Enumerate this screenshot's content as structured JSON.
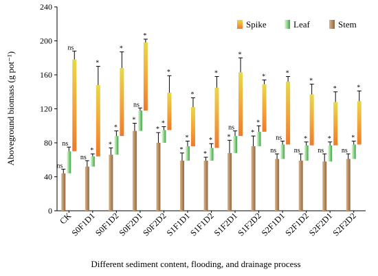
{
  "chart_data": {
    "type": "bar",
    "subtype": "stacked",
    "categories": [
      "CK",
      "S0F1D1",
      "S0F1D2",
      "S0F2D1",
      "S0F2D2",
      "S1F1D1",
      "S1F1D2",
      "S1F2D1",
      "S1F2D2",
      "S2F1D1",
      "S2F1D2",
      "S2F2D1",
      "S2F2D2"
    ],
    "ylabel": "Aboveground biomass (g pot⁻¹)",
    "xlabel": "Different sediment content, flooding, and drainage process",
    "ylim": [
      0,
      240
    ],
    "yticks": [
      0,
      40,
      80,
      120,
      160,
      200,
      240
    ],
    "grid": false,
    "legend_position": "top-right",
    "series": [
      {
        "name": "Stem",
        "color": "#b58a60",
        "cumulative": [
          44,
          52,
          66,
          94,
          80,
          59,
          59,
          68,
          76,
          61,
          59,
          58,
          61
        ],
        "error": [
          5,
          7,
          8,
          9,
          12,
          9,
          4,
          15,
          12,
          6,
          8,
          9,
          6
        ],
        "sig": [
          "ns",
          "ns",
          "*",
          "*",
          "*",
          "*",
          "*",
          "*",
          "*",
          "ns",
          "ns",
          "ns",
          "ns"
        ]
      },
      {
        "name": "Leaf",
        "color": "#6fc36f",
        "cumulative": [
          70,
          64,
          88,
          118,
          95,
          76,
          74,
          88,
          93,
          78,
          77,
          77,
          78
        ],
        "error": [
          5,
          3,
          6,
          3,
          4,
          6,
          5,
          6,
          7,
          4,
          4,
          4,
          4
        ],
        "sig": [
          "ns",
          "*",
          "*",
          "ns",
          "*",
          "*",
          "*",
          "ns",
          "*",
          "ns",
          "*",
          "*",
          "*"
        ]
      },
      {
        "name": "Spike",
        "color": "#f0a030",
        "cumulative": [
          178,
          148,
          168,
          198,
          139,
          122,
          145,
          163,
          149,
          152,
          137,
          128,
          129
        ],
        "error": [
          10,
          22,
          19,
          4,
          20,
          11,
          13,
          17,
          5,
          6,
          12,
          12,
          12
        ],
        "sig": [
          "ns",
          "*",
          "*",
          "*",
          "*",
          "*",
          "*",
          "*",
          "*",
          "*",
          "*",
          "*",
          "*"
        ]
      }
    ]
  }
}
